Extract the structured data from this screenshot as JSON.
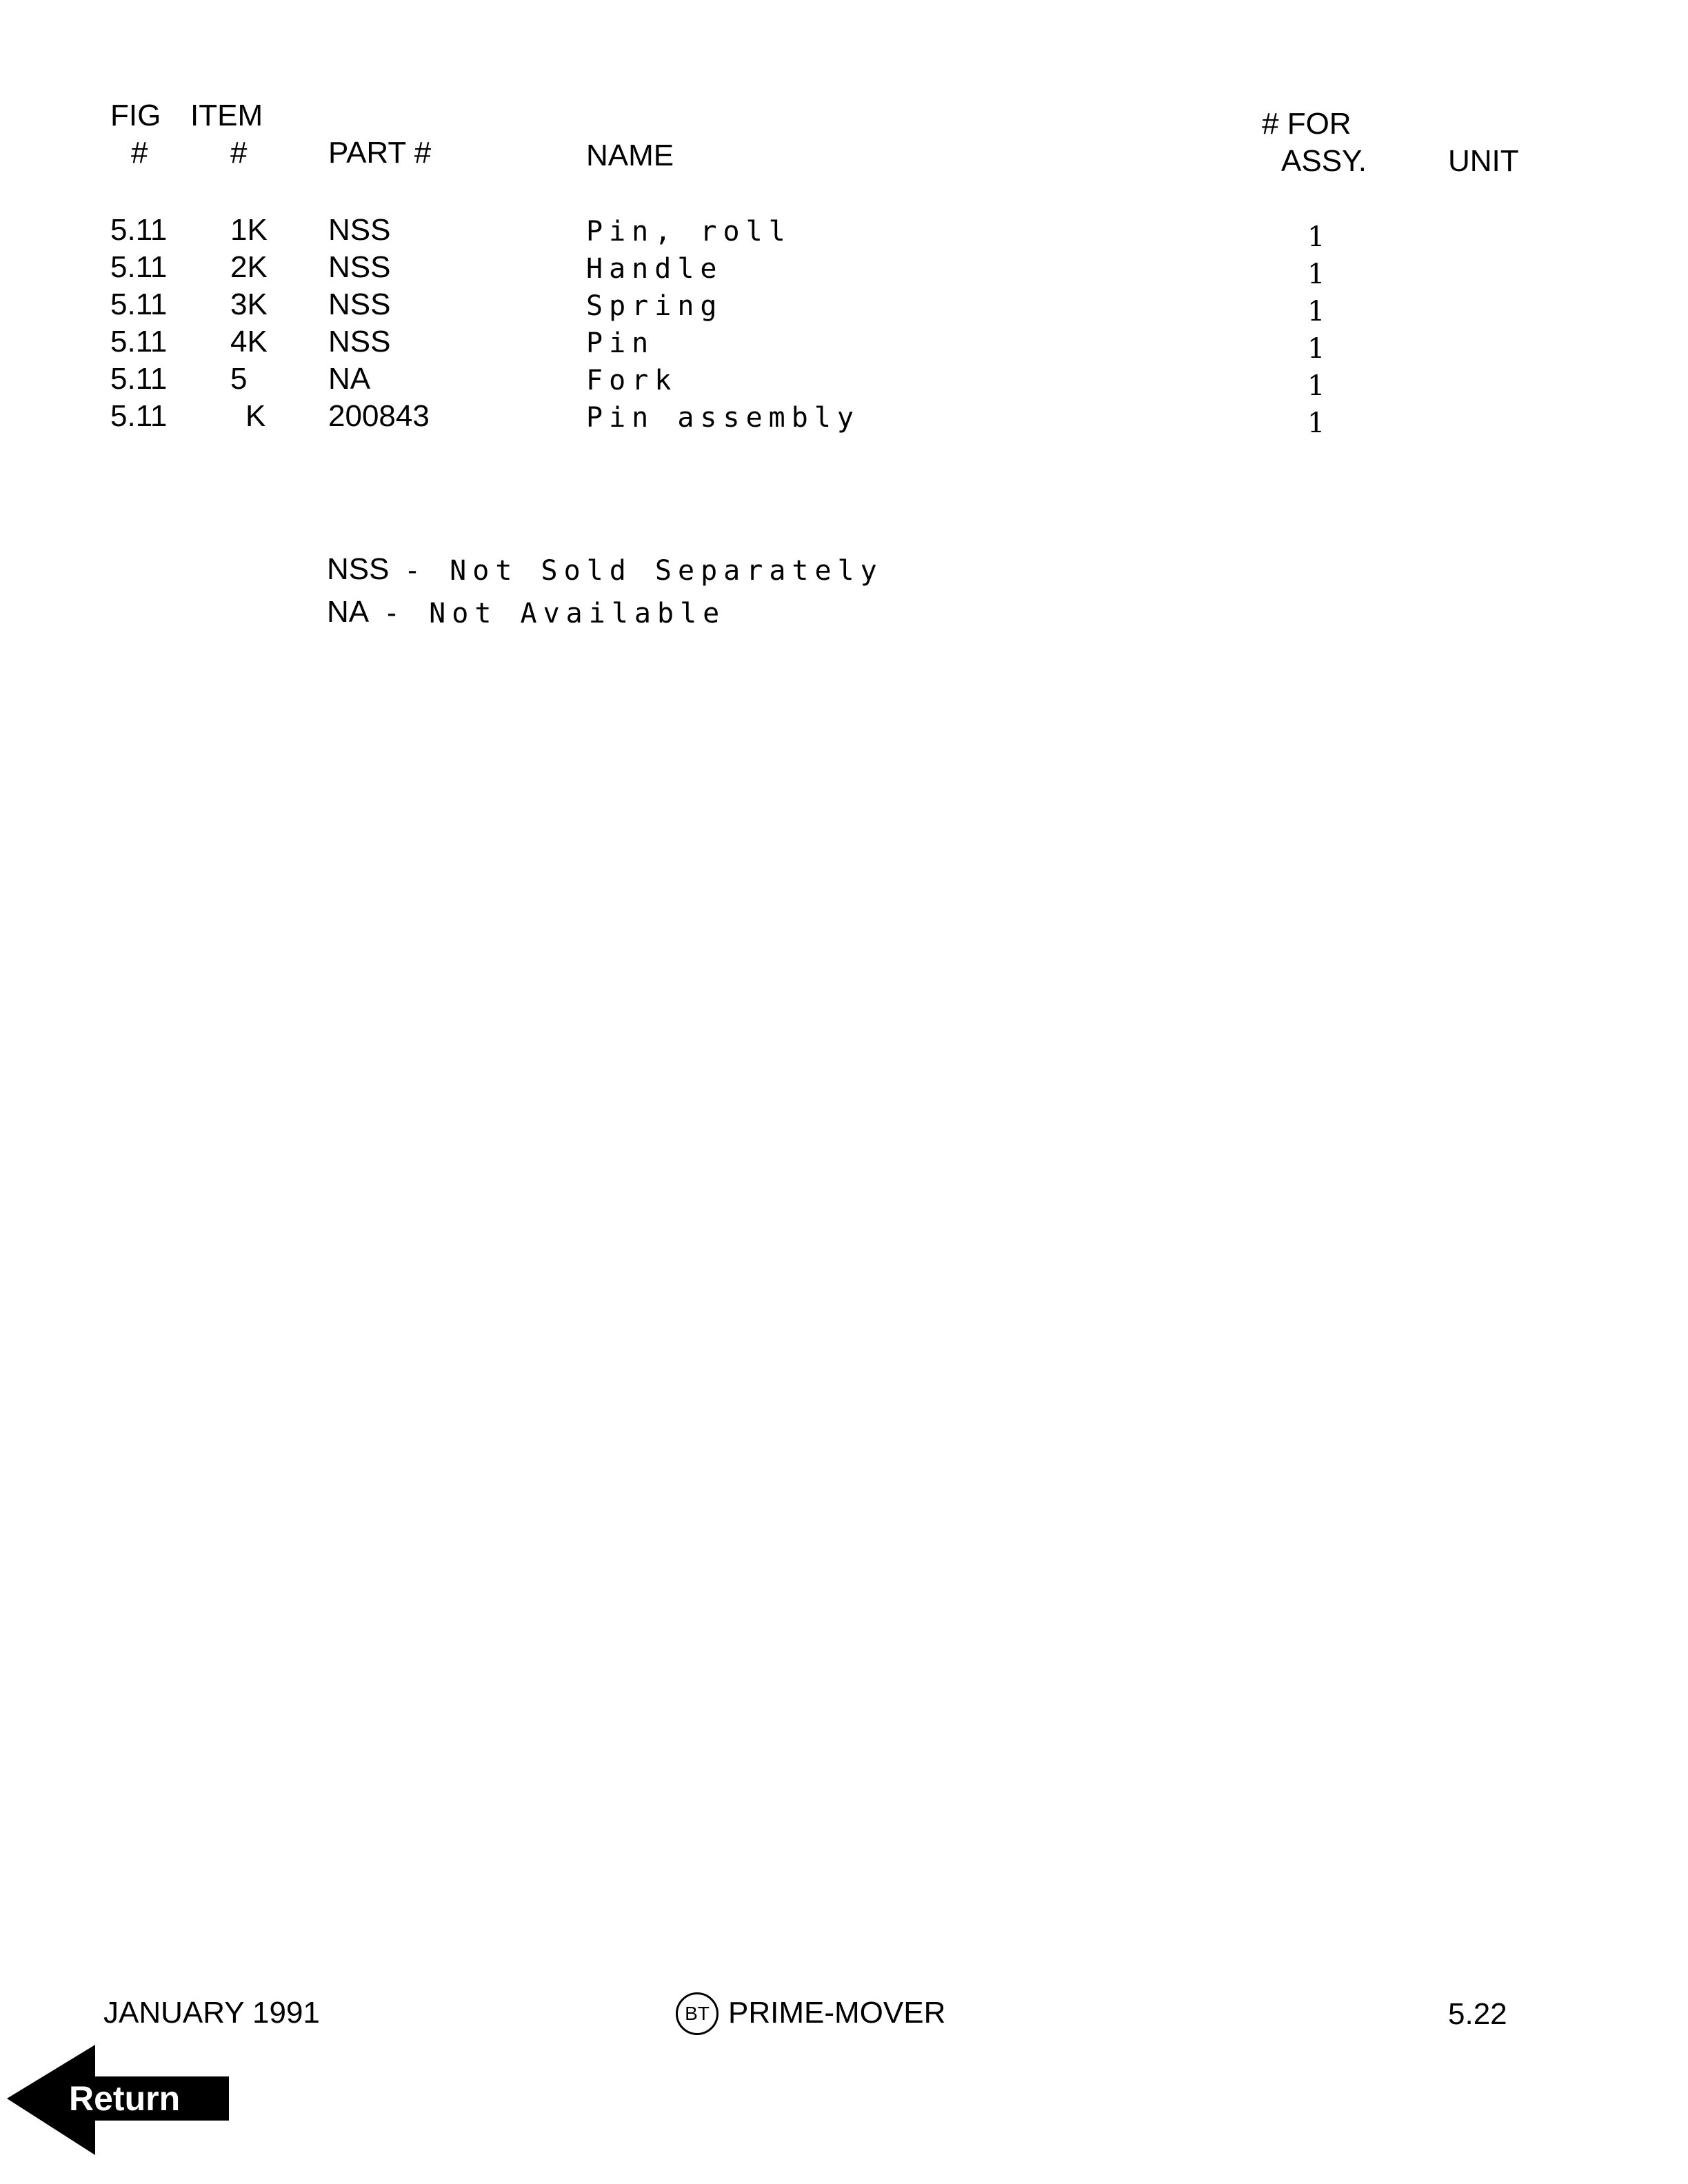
{
  "header": {
    "fig_line1": "FIG",
    "fig_line2": "#",
    "item_line1": "ITEM",
    "item_line2": "#",
    "part": "PART #",
    "name": "NAME",
    "qty_line1": "# FOR",
    "qty_line2": "ASSY.",
    "unit": "UNIT"
  },
  "rows": [
    {
      "fig": "5.11",
      "item": "1K",
      "part": "NSS",
      "name": "Pin, roll",
      "qty": "1"
    },
    {
      "fig": "5.11",
      "item": "2K",
      "part": "NSS",
      "name": "Handle",
      "qty": "1"
    },
    {
      "fig": "5.11",
      "item": "3K",
      "part": "NSS",
      "name": "Spring",
      "qty": "1"
    },
    {
      "fig": "5.11",
      "item": "4K",
      "part": "NSS",
      "name": "Pin",
      "qty": "1"
    },
    {
      "fig": "5.11",
      "item": "5",
      "part": "NA",
      "name": "Fork",
      "qty": "1"
    },
    {
      "fig": "5.11",
      "item": "K",
      "part": "200843",
      "name": "Pin assembly",
      "qty": "1"
    }
  ],
  "notes": [
    {
      "abbr": "NSS",
      "text": "- Not Sold Separately"
    },
    {
      "abbr": "NA",
      "text": "- Not Available"
    }
  ],
  "footer": {
    "date": "JANUARY 1991",
    "logo": "BT",
    "brand": "PRIME-MOVER",
    "page": "5.22"
  },
  "return_button": {
    "label": "Return",
    "icon": "left-arrow-icon"
  }
}
